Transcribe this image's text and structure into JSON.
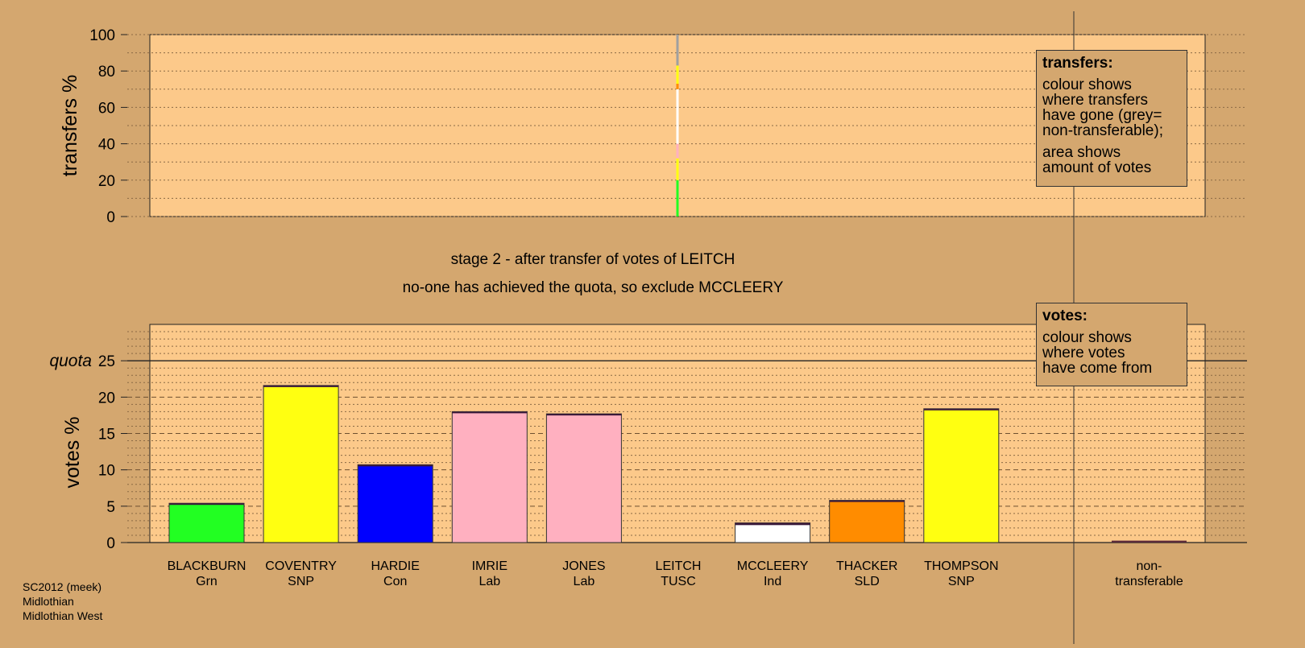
{
  "chart_data": [
    {
      "type": "bar",
      "panel": "transfers",
      "ylabel": "transfers %",
      "ylim": [
        0,
        100
      ],
      "yticks": [
        "0",
        "20",
        "40",
        "60",
        "80",
        "100"
      ],
      "grid": true,
      "transfer_from": "LEITCH",
      "segments": [
        {
          "to": "BLACKBURN",
          "party": "Grn",
          "value": 20,
          "color": "#22ff22"
        },
        {
          "to": "COVENTRY",
          "party": "SNP",
          "value": 12,
          "color": "#ffff11"
        },
        {
          "to": "IMRIE",
          "party": "Lab",
          "value": 4,
          "color": "#ffb0c0"
        },
        {
          "to": "JONES",
          "party": "Lab",
          "value": 4,
          "color": "#ffb0c0"
        },
        {
          "to": "MCCLEERY",
          "party": "Ind",
          "value": 30,
          "color": "#ffffff"
        },
        {
          "to": "THACKER",
          "party": "SLD",
          "value": 3,
          "color": "#ff8c00"
        },
        {
          "to": "THOMPSON",
          "party": "SNP",
          "value": 10,
          "color": "#ffff11"
        },
        {
          "to": "non-transferable",
          "party": "",
          "value": 17,
          "color": "#a0a0a0"
        }
      ]
    },
    {
      "type": "bar",
      "panel": "votes",
      "ylabel": "votes %",
      "ylim": [
        0,
        30
      ],
      "yticks": [
        "0",
        "5",
        "10",
        "15",
        "20",
        "25"
      ],
      "quota": 25,
      "quota_label": "quota",
      "grid": true,
      "categories": [
        {
          "name": "BLACKBURN",
          "party": "Grn",
          "value": 5.4,
          "color": "#22ff22",
          "transfer_gain": 0.2
        },
        {
          "name": "COVENTRY",
          "party": "SNP",
          "value": 21.6,
          "color": "#ffff11",
          "transfer_gain": 0.2
        },
        {
          "name": "HARDIE",
          "party": "Con",
          "value": 10.7,
          "color": "#0000ff",
          "transfer_gain": 0.0
        },
        {
          "name": "IMRIE",
          "party": "Lab",
          "value": 18.0,
          "color": "#ffb0c0",
          "transfer_gain": 0.1
        },
        {
          "name": "JONES",
          "party": "Lab",
          "value": 17.7,
          "color": "#ffb0c0",
          "transfer_gain": 0.1
        },
        {
          "name": "LEITCH",
          "party": "TUSC",
          "value": 0,
          "color": "#cc2222",
          "transfer_gain": 0
        },
        {
          "name": "MCCLEERY",
          "party": "Ind",
          "value": 2.7,
          "color": "#ffffff",
          "transfer_gain": 0.3
        },
        {
          "name": "THACKER",
          "party": "SLD",
          "value": 5.8,
          "color": "#ff8c00",
          "transfer_gain": 0.1
        },
        {
          "name": "THOMPSON",
          "party": "SNP",
          "value": 18.4,
          "color": "#ffff11",
          "transfer_gain": 0.2
        }
      ],
      "nontransferable": {
        "label_line1": "non-",
        "label_line2": "transferable",
        "value": 0.15
      }
    }
  ],
  "stage_title": "stage 2 - after transfer of votes of LEITCH",
  "stage_subtitle": "no-one has achieved the quota, so exclude MCCLEERY",
  "legend_transfers": {
    "title": "transfers:",
    "line1": "colour shows",
    "line2": "where transfers",
    "line3": "have gone (grey=",
    "line4": "non-transferable);",
    "line5": "area shows",
    "line6": "amount of votes"
  },
  "legend_votes": {
    "title": "votes:",
    "line1": "colour shows",
    "line2": "where votes",
    "line3": "have come from"
  },
  "caption": {
    "line1": "SC2012 (meek)",
    "line2": "Midlothian",
    "line3": "Midlothian West"
  },
  "colors": {
    "background": "#d4a76f",
    "plot_background": "#fcc98a"
  }
}
